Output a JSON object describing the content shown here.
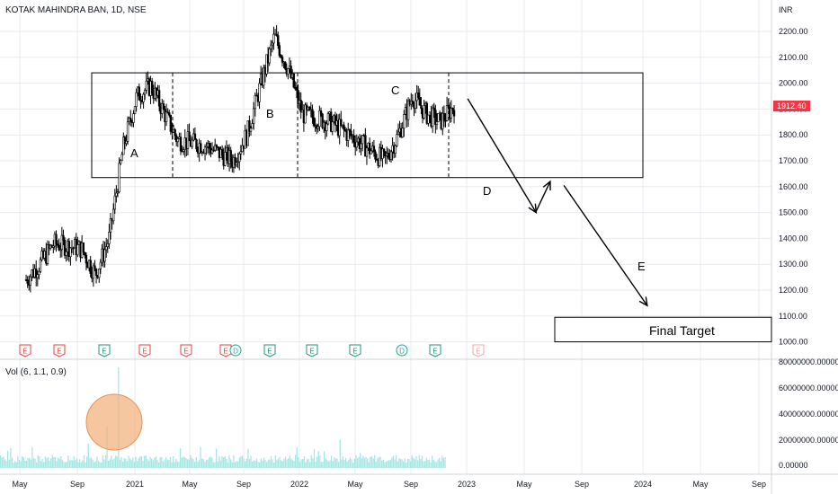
{
  "header": {
    "symbol_label": "KOTAK MAHINDRA BAN, 1D, NSE"
  },
  "price_scale": {
    "currency": "INR",
    "ticks": [
      "2200.00",
      "2100.00",
      "2000.00",
      "1900.00",
      "1800.00",
      "1700.00",
      "1600.00",
      "1500.00",
      "1400.00",
      "1300.00",
      "1200.00",
      "1100.00",
      "1000.00"
    ],
    "last_price": "1912.40"
  },
  "volume_scale": {
    "ticks": [
      "80000000.00000",
      "60000000.00000",
      "40000000.00000",
      "20000000.00000",
      "0.00000"
    ]
  },
  "volume_legend": "Vol (6, 1.1, 0.9)",
  "time_axis": [
    "May",
    "Sep",
    "2021",
    "May",
    "Sep",
    "2022",
    "May",
    "Sep",
    "2023",
    "May",
    "Sep",
    "2024",
    "May",
    "Sep"
  ],
  "annotations": {
    "wave_a": "A",
    "wave_b": "B",
    "wave_c": "C",
    "wave_d": "D",
    "wave_e": "E",
    "final_target": "Final Target"
  },
  "event_markers": [
    "E",
    "E",
    "E",
    "E",
    "E",
    "E",
    "D",
    "E",
    "E",
    "E",
    "D",
    "E",
    "E"
  ],
  "colors": {
    "candle": "#000000",
    "price_tag": "#f23645",
    "volume": "#a8e6e6",
    "volume_highlight": "#f2b37f",
    "grid": "#e9ebf0",
    "earnings_red": "#e4453d",
    "earnings_green": "#26917b",
    "dividend_green": "#26a69a"
  },
  "chart_data": {
    "type": "candlestick",
    "title": "KOTAK MAHINDRA BAN, 1D, NSE",
    "ylabel": "INR",
    "ylim": [
      1000,
      2200
    ],
    "range_box": {
      "top": 2040,
      "bottom": 1635
    },
    "final_target_box": {
      "top": 1095,
      "bottom": 1000
    },
    "last_price": 1912.4,
    "approx_path": [
      {
        "date": "2020-04",
        "price": 1240
      },
      {
        "date": "2020-05",
        "price": 1300
      },
      {
        "date": "2020-06",
        "price": 1380
      },
      {
        "date": "2020-08",
        "price": 1360
      },
      {
        "date": "2020-09",
        "price": 1260
      },
      {
        "date": "2020-10",
        "price": 1400
      },
      {
        "date": "2020-11",
        "price": 1750
      },
      {
        "date": "2020-12",
        "price": 1950
      },
      {
        "date": "2021-01",
        "price": 1990
      },
      {
        "date": "2021-02",
        "price": 1880
      },
      {
        "date": "2021-03",
        "price": 1780
      },
      {
        "date": "2021-05",
        "price": 1760
      },
      {
        "date": "2021-07",
        "price": 1700
      },
      {
        "date": "2021-08",
        "price": 1800
      },
      {
        "date": "2021-09",
        "price": 2000
      },
      {
        "date": "2021-10",
        "price": 2180
      },
      {
        "date": "2021-11",
        "price": 2050
      },
      {
        "date": "2021-12",
        "price": 1880
      },
      {
        "date": "2022-02",
        "price": 1850
      },
      {
        "date": "2022-04",
        "price": 1780
      },
      {
        "date": "2022-06",
        "price": 1700
      },
      {
        "date": "2022-07",
        "price": 1800
      },
      {
        "date": "2022-08",
        "price": 1950
      },
      {
        "date": "2022-09",
        "price": 1880
      },
      {
        "date": "2022-10",
        "price": 1850
      },
      {
        "date": "2022-11",
        "price": 1912
      }
    ],
    "projection": [
      {
        "date": "2022-12",
        "price": 1940
      },
      {
        "date": "2023-05",
        "price": 1500
      },
      {
        "date": "2023-06",
        "price": 1620
      },
      {
        "date": "2023-07",
        "price": 1600
      },
      {
        "date": "2024-01",
        "price": 1140
      }
    ],
    "volume_ylim": [
      0,
      80000000
    ]
  }
}
